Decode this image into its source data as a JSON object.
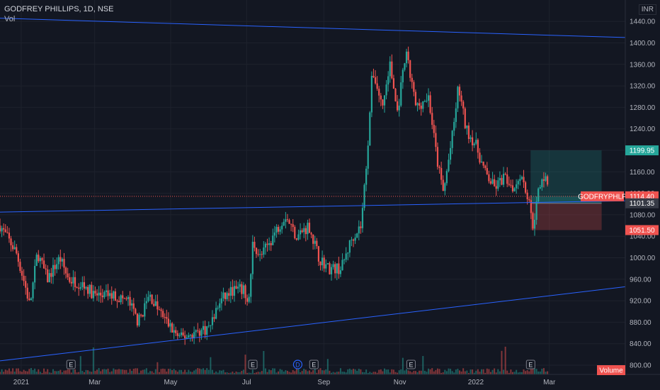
{
  "header": {
    "title": "GODFREY PHILLIPS, 1D, NSE",
    "volume_label": "Vol"
  },
  "currency": "INR",
  "colors": {
    "background": "#131722",
    "up": "#26a69a",
    "down": "#ef5350",
    "trendline": "#2962ff",
    "grid": "#1e222d",
    "axis_text": "#b2b5be"
  },
  "badges": {
    "target": "1199.95",
    "ticker": "GODFRYPHLP",
    "last": "1114.40",
    "entry": "1101.35",
    "stop": "1051.50",
    "volume": "Volume"
  },
  "chart_data": {
    "type": "candlestick",
    "title": "GODFREY PHILLIPS, 1D, NSE",
    "y_ticks": [
      800,
      840,
      880,
      920,
      960,
      1000,
      1040,
      1080,
      1120,
      1160,
      1200,
      1240,
      1280,
      1320,
      1360,
      1400,
      1440
    ],
    "ylim": [
      790,
      1450
    ],
    "x_ticks": [
      "2021",
      "Mar",
      "May",
      "Jul",
      "Sep",
      "Nov",
      "2022",
      "Mar"
    ],
    "price_path": [
      [
        "2020-12-15",
        1060
      ],
      [
        "2020-12-28",
        1010
      ],
      [
        "2021-01-04",
        950
      ],
      [
        "2021-01-08",
        910
      ],
      [
        "2021-01-14",
        1010
      ],
      [
        "2021-01-22",
        960
      ],
      [
        "2021-02-01",
        1000
      ],
      [
        "2021-02-08",
        960
      ],
      [
        "2021-02-20",
        950
      ],
      [
        "2021-03-01",
        930
      ],
      [
        "2021-03-15",
        930
      ],
      [
        "2021-03-28",
        920
      ],
      [
        "2021-04-05",
        880
      ],
      [
        "2021-04-14",
        930
      ],
      [
        "2021-04-22",
        900
      ],
      [
        "2021-05-01",
        870
      ],
      [
        "2021-05-08",
        850
      ],
      [
        "2021-05-20",
        860
      ],
      [
        "2021-06-01",
        870
      ],
      [
        "2021-06-10",
        920
      ],
      [
        "2021-06-20",
        940
      ],
      [
        "2021-06-28",
        940
      ],
      [
        "2021-07-03",
        920
      ],
      [
        "2021-07-06",
        1030
      ],
      [
        "2021-07-12",
        1000
      ],
      [
        "2021-07-22",
        1040
      ],
      [
        "2021-08-01",
        1080
      ],
      [
        "2021-08-10",
        1040
      ],
      [
        "2021-08-20",
        1060
      ],
      [
        "2021-08-28",
        1000
      ],
      [
        "2021-09-05",
        980
      ],
      [
        "2021-09-15",
        980
      ],
      [
        "2021-09-24",
        1040
      ],
      [
        "2021-10-01",
        1060
      ],
      [
        "2021-10-06",
        1200
      ],
      [
        "2021-10-10",
        1350
      ],
      [
        "2021-10-18",
        1280
      ],
      [
        "2021-10-24",
        1360
      ],
      [
        "2021-10-30",
        1270
      ],
      [
        "2021-11-06",
        1380
      ],
      [
        "2021-11-14",
        1280
      ],
      [
        "2021-11-24",
        1300
      ],
      [
        "2021-12-01",
        1180
      ],
      [
        "2021-12-06",
        1120
      ],
      [
        "2021-12-14",
        1240
      ],
      [
        "2021-12-18",
        1320
      ],
      [
        "2021-12-24",
        1240
      ],
      [
        "2022-01-01",
        1210
      ],
      [
        "2022-01-08",
        1160
      ],
      [
        "2022-01-16",
        1130
      ],
      [
        "2022-01-24",
        1150
      ],
      [
        "2022-02-01",
        1130
      ],
      [
        "2022-02-06",
        1160
      ],
      [
        "2022-02-12",
        1110
      ],
      [
        "2022-02-16",
        1060
      ],
      [
        "2022-02-20",
        1120
      ],
      [
        "2022-02-26",
        1160
      ],
      [
        "2022-03-01",
        1114
      ]
    ],
    "trendlines": [
      {
        "from": [
          "2020-12-15",
          1446
        ],
        "to": [
          "2022-05-01",
          1410
        ]
      },
      {
        "from": [
          "2020-12-15",
          1085
        ],
        "to": [
          "2022-05-01",
          1106
        ]
      },
      {
        "from": [
          "2020-12-15",
          808
        ],
        "to": [
          "2022-05-01",
          946
        ]
      }
    ],
    "position": {
      "entry_date": "2022-02-14",
      "end_date": "2022-04-12",
      "entry": 1101.35,
      "target": 1199.95,
      "stop": 1051.5,
      "last": 1114.4
    },
    "earnings_markers": [
      {
        "date": "2021-02-10",
        "label": "E"
      },
      {
        "date": "2021-07-06",
        "label": "E"
      },
      {
        "date": "2021-08-11",
        "label": "D"
      },
      {
        "date": "2021-08-24",
        "label": "E"
      },
      {
        "date": "2021-11-10",
        "label": "E"
      },
      {
        "date": "2022-02-14",
        "label": "E"
      }
    ]
  }
}
